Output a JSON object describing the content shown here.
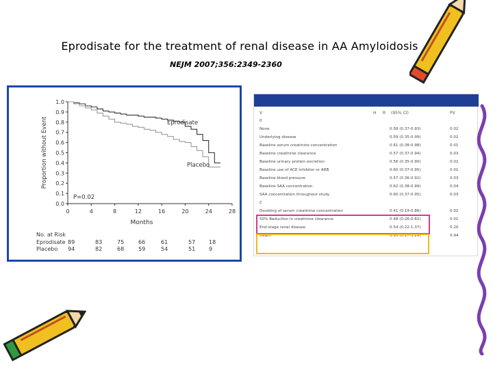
{
  "slide": {
    "title": "Eprodisate for the treatment of renal disease in AA Amyloidosis",
    "subtitle": "NEJM 2007;356:2349-2360"
  },
  "chart_data": [
    {
      "type": "line",
      "ylabel": "Proportion without Event",
      "xlabel": "Months",
      "xlim": [
        0,
        28
      ],
      "ylim": [
        0,
        1.0
      ],
      "x_ticks": [
        "0",
        "4",
        "8",
        "12",
        "16",
        "20",
        "24",
        "28"
      ],
      "y_ticks": [
        "0.0",
        "0.1",
        "0.2",
        "0.3",
        "0.4",
        "0.5",
        "0.6",
        "0.7",
        "0.8",
        "0.9",
        "1.0"
      ],
      "annotation": "P=0.02",
      "series": [
        {
          "name": "Eprodisate",
          "color": "#333333",
          "points": [
            [
              0,
              1.0
            ],
            [
              1,
              0.99
            ],
            [
              2,
              0.98
            ],
            [
              3,
              0.96
            ],
            [
              4,
              0.95
            ],
            [
              5,
              0.93
            ],
            [
              6,
              0.91
            ],
            [
              7,
              0.9
            ],
            [
              8,
              0.89
            ],
            [
              9,
              0.88
            ],
            [
              10,
              0.87
            ],
            [
              12,
              0.86
            ],
            [
              13,
              0.85
            ],
            [
              14,
              0.85
            ],
            [
              15,
              0.84
            ],
            [
              16,
              0.83
            ],
            [
              17,
              0.82
            ],
            [
              18,
              0.81
            ],
            [
              19,
              0.8
            ],
            [
              20,
              0.76
            ],
            [
              21,
              0.73
            ],
            [
              22,
              0.68
            ],
            [
              23,
              0.62
            ],
            [
              24,
              0.5
            ],
            [
              25,
              0.4
            ],
            [
              26,
              0.4
            ]
          ]
        },
        {
          "name": "Placebo",
          "color": "#999999",
          "points": [
            [
              0,
              1.0
            ],
            [
              1,
              0.98
            ],
            [
              2,
              0.96
            ],
            [
              3,
              0.94
            ],
            [
              4,
              0.92
            ],
            [
              5,
              0.89
            ],
            [
              6,
              0.86
            ],
            [
              7,
              0.83
            ],
            [
              8,
              0.8
            ],
            [
              9,
              0.79
            ],
            [
              10,
              0.78
            ],
            [
              11,
              0.76
            ],
            [
              12,
              0.75
            ],
            [
              13,
              0.73
            ],
            [
              14,
              0.72
            ],
            [
              15,
              0.7
            ],
            [
              16,
              0.68
            ],
            [
              17,
              0.66
            ],
            [
              18,
              0.63
            ],
            [
              19,
              0.61
            ],
            [
              20,
              0.6
            ],
            [
              21,
              0.56
            ],
            [
              22,
              0.52
            ],
            [
              23,
              0.46
            ],
            [
              24,
              0.36
            ],
            [
              25,
              0.36
            ],
            [
              26,
              0.36
            ]
          ]
        }
      ],
      "at_risk": {
        "header": "No. at Risk",
        "rows": [
          {
            "name": "Eprodisate",
            "values": [
              "89",
              "83",
              "75",
              "66",
              "61",
              "57",
              "18"
            ]
          },
          {
            "name": "Placebo",
            "values": [
              "94",
              "82",
              "68",
              "59",
              "54",
              "51",
              "9"
            ]
          }
        ]
      }
    },
    {
      "type": "table",
      "columns": [
        "V",
        "H",
        "R",
        "(95% CI)",
        "PV"
      ],
      "rows": [
        {
          "label": "0",
          "hr": "",
          "pv": ""
        },
        {
          "label": "None",
          "hr": "0.58 (0.37-0.93)",
          "pv": "0.02"
        },
        {
          "label": "Underlying disease",
          "hr": "0.59 (0.35-0.99)",
          "pv": "0.02"
        },
        {
          "label": "Baseline serum creatinine concentration",
          "hr": "0.61 (0.38-0.98)",
          "pv": "0.01"
        },
        {
          "label": "Baseline creatinine clearance",
          "hr": "0.57 (0.37-0.94)",
          "pv": "0.03"
        },
        {
          "label": "Baseline urinary protein excretion",
          "hr": "0.56 (0.35-0.90)",
          "pv": "0.02"
        },
        {
          "label": "Baseline use of ACE inhibitor or ARB",
          "hr": "0.60 (0.37-0.95)",
          "pv": "0.01"
        },
        {
          "label": "Baseline blood pressure",
          "hr": "0.57 (0.36-0.92)",
          "pv": "0.03"
        },
        {
          "label": "Baseline SAA concentration",
          "hr": "0.62 (0.38-0.99)",
          "pv": "0.04"
        },
        {
          "label": "SAA concentration throughout study",
          "hr": "0.60 (0.37-0.95)",
          "pv": "0.03"
        },
        {
          "label": "C",
          "hr": "",
          "pv": ""
        },
        {
          "label": "Doubling of serum creatinine concentration",
          "hr": "0.41 (0.19-0.86)",
          "pv": "0.02"
        },
        {
          "label": "50% Reduction in creatinine clearance",
          "hr": "0.48 (0.26-0.82)",
          "pv": "0.01"
        },
        {
          "label": "End-stage renal disease",
          "hr": "0.54 (0.22-1.37)",
          "pv": "0.20"
        },
        {
          "label": "Death",
          "hr": "0.95 (0.27-3.29)",
          "pv": "0.94"
        }
      ]
    }
  ],
  "colors": {
    "panel_border": "#1b47a6",
    "table_header_bar": "#1f3f96",
    "highlight_magenta": "#d23a8c",
    "highlight_yellow": "#f4b521"
  },
  "decorations": [
    "pencil-icon-top-right",
    "pencil-icon-bottom-left",
    "swirl-border-right"
  ]
}
